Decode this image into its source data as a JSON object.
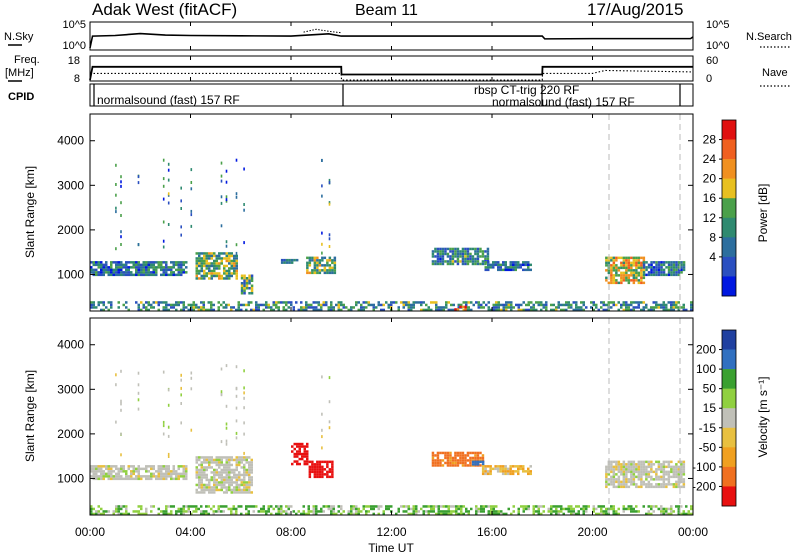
{
  "header": {
    "station": "Adak West (fitACF)",
    "beam": "Beam 11",
    "date": "17/Aug/2015"
  },
  "noise_panel": {
    "left_label": "N.Sky",
    "right_label": "N.Search",
    "y_ticks_left": [
      "10^5",
      "10^0"
    ],
    "y_ticks_right": [
      "10^5",
      "10^0"
    ]
  },
  "freq_panel": {
    "left_label": "Freq.",
    "left_unit": "[MHz]",
    "right_label": "Nave",
    "y_ticks_left": [
      "18",
      "8"
    ],
    "y_ticks_right": [
      "60",
      "0"
    ]
  },
  "cpid_panel": {
    "label": "CPID",
    "segments": [
      "normalsound (fast) 157 RF",
      "rbsp CT-trig 220 RF",
      "normalsound (fast) 157 RF"
    ]
  },
  "x_axis": {
    "label": "Time UT",
    "ticks": [
      "00:00",
      "04:00",
      "08:00",
      "12:00",
      "16:00",
      "20:00",
      "00:00"
    ]
  },
  "colorbars": {
    "power": {
      "label": "Power [dB]",
      "ticks": [
        "28",
        "24",
        "20",
        "16",
        "12",
        "8",
        "4"
      ]
    },
    "velocity": {
      "label": "Velocity [m s⁻¹]",
      "ticks": [
        "200",
        "100",
        "50",
        "15",
        "-15",
        "-50",
        "-100",
        "-200"
      ]
    }
  },
  "chart_data": [
    {
      "type": "line",
      "x_unit": "hours UT",
      "xlim": [
        0,
        24
      ],
      "series": [
        {
          "name": "N.Sky",
          "x": [
            0,
            0.1,
            1,
            2,
            3,
            4,
            6,
            8,
            9.5,
            10,
            12,
            14,
            16,
            18,
            18.1,
            20,
            22,
            23.9,
            24
          ],
          "y": [
            1,
            300,
            400,
            1000,
            500,
            400,
            350,
            300,
            900,
            300,
            300,
            300,
            300,
            300,
            80,
            90,
            90,
            90,
            200
          ]
        },
        {
          "name": "N.Search",
          "x": [
            8.5,
            9,
            9.5,
            10
          ],
          "y": [
            2000,
            8000,
            3000,
            1500
          ]
        }
      ]
    },
    {
      "type": "line",
      "x_unit": "hours UT",
      "xlim": [
        0,
        24
      ],
      "series": [
        {
          "name": "Freq.",
          "x": [
            0,
            0.1,
            10,
            10.01,
            18,
            18.01,
            24
          ],
          "y": [
            8,
            14,
            14,
            10.5,
            10.5,
            14,
            14
          ]
        },
        {
          "name": "Nave",
          "x": [
            0,
            10,
            10.01,
            18,
            18.01,
            20,
            20.5,
            24
          ],
          "y": [
            18,
            18,
            0,
            0,
            18,
            18,
            26,
            22
          ]
        }
      ]
    },
    {
      "type": "heatmap",
      "title": "Power [dB]",
      "ylabel": "Slant Range [km]",
      "xlabel": "Time UT",
      "xlim": [
        0,
        24
      ],
      "ylim": [
        180,
        4600
      ],
      "colorbar_range": [
        0,
        30
      ],
      "regions": [
        {
          "t0": 0.0,
          "t1": 3.8,
          "r0": 1000,
          "r1": 1300,
          "value": 9
        },
        {
          "t0": 4.2,
          "t1": 5.8,
          "r0": 900,
          "r1": 1500,
          "value": 14
        },
        {
          "t0": 6.0,
          "t1": 6.4,
          "r0": 600,
          "r1": 1000,
          "value": 12
        },
        {
          "t0": 7.6,
          "t1": 8.2,
          "r0": 1250,
          "r1": 1350,
          "value": 10
        },
        {
          "t0": 8.6,
          "t1": 9.7,
          "r0": 1050,
          "r1": 1400,
          "value": 14
        },
        {
          "t0": 13.6,
          "t1": 15.8,
          "r0": 1250,
          "r1": 1600,
          "value": 10
        },
        {
          "t0": 15.7,
          "t1": 17.5,
          "r0": 1100,
          "r1": 1300,
          "value": 8
        },
        {
          "t0": 20.5,
          "t1": 22.0,
          "r0": 800,
          "r1": 1400,
          "value": 18
        },
        {
          "t0": 22.0,
          "t1": 23.6,
          "r0": 1000,
          "r1": 1300,
          "value": 9
        },
        {
          "t0": 0.0,
          "t1": 23.9,
          "r0": 200,
          "r1": 400,
          "value": 11
        },
        {
          "t0": 14.5,
          "t1": 15.2,
          "r0": 200,
          "r1": 300,
          "value": 27
        }
      ]
    },
    {
      "type": "heatmap",
      "title": "Velocity [m s⁻¹]",
      "ylabel": "Slant Range [km]",
      "xlabel": "Time UT",
      "xlim": [
        0,
        24
      ],
      "ylim": [
        180,
        4600
      ],
      "colorbar_range": [
        -250,
        250
      ],
      "regions": [
        {
          "t0": 0.0,
          "t1": 3.8,
          "r0": 1000,
          "r1": 1300,
          "value": 0
        },
        {
          "t0": 4.2,
          "t1": 6.4,
          "r0": 700,
          "r1": 1500,
          "value": 0
        },
        {
          "t0": 8.0,
          "t1": 8.6,
          "r0": 1300,
          "r1": 1800,
          "value": -200
        },
        {
          "t0": 8.7,
          "t1": 9.6,
          "r0": 1050,
          "r1": 1400,
          "value": -220
        },
        {
          "t0": 13.6,
          "t1": 15.6,
          "r0": 1300,
          "r1": 1600,
          "value": -90
        },
        {
          "t0": 15.2,
          "t1": 15.6,
          "r0": 1300,
          "r1": 1400,
          "value": 120
        },
        {
          "t0": 15.6,
          "t1": 17.5,
          "r0": 1100,
          "r1": 1300,
          "value": -30
        },
        {
          "t0": 20.5,
          "t1": 23.6,
          "r0": 800,
          "r1": 1400,
          "value": 0
        },
        {
          "t0": 0.0,
          "t1": 23.9,
          "r0": 200,
          "r1": 400,
          "value": 30
        }
      ]
    }
  ]
}
